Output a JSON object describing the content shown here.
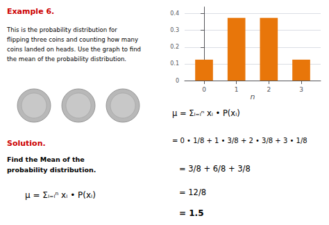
{
  "chart_data": {
    "type": "bar",
    "x": [
      0,
      1,
      2,
      3
    ],
    "values": [
      0.125,
      0.375,
      0.375,
      0.125
    ],
    "color": "#E8760A",
    "xlabel": "n",
    "xlim": [
      -0.6,
      3.6
    ],
    "xticks": [
      0,
      1,
      2,
      3
    ],
    "ylim": [
      0,
      0.44
    ],
    "yticks": [
      0,
      0.1,
      0.2,
      0.3,
      0.4
    ],
    "grid": true,
    "annotations": [
      {
        "text": "Example 6.",
        "color": "#CC0000"
      },
      {
        "text": "This is the probability distribution for\nflipping three coins and counting how many\ncoins landed on heads. Use the graph to find\nthe mean of the probability distribution."
      },
      {
        "text": "Solution.",
        "color": "#CC0000"
      },
      {
        "text": "Find the Mean of the\nprobability distribution."
      },
      {
        "text": "μ = Σᵢ₌ᵢⁿ xᵢ • P(xᵢ)"
      },
      {
        "text": "μ = Σᵢ₌ᵢⁿ xᵢ • P(xᵢ)"
      },
      {
        "text": "= 0 • 1/8 + 1 • 3/8 + 2 • 3/8 + 3 • 1/8"
      },
      {
        "text": "= 3/8 + 6/8 + 3/8"
      },
      {
        "text": "= 12/8"
      },
      {
        "text": "= 1.5"
      }
    ]
  }
}
